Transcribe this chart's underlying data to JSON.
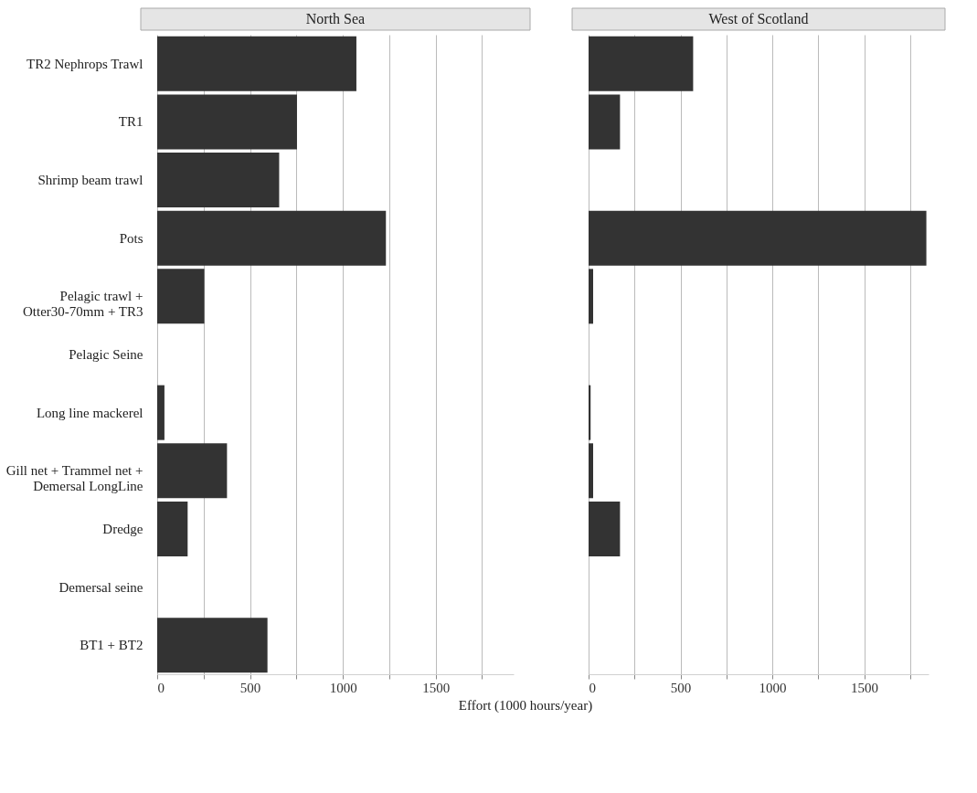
{
  "chart_data": [
    {
      "type": "bar",
      "orientation": "horizontal",
      "title": "North Sea",
      "xlabel": "Effort (1000 hours/year)",
      "categories": [
        "TR2 Nephrops Trawl",
        "TR1",
        "Shrimp beam trawl",
        "Pots",
        "Pelagic trawl +\nOtter30-70mm + TR3",
        "Pelagic Seine",
        "Long line mackerel",
        "Gill net + Trammel net +\nDemersal LongLine",
        "Dredge",
        "Demersal seine",
        "BT1 + BT2"
      ],
      "series": [
        {
          "color": "#333333",
          "values": [
            1073,
            753,
            657,
            1232,
            254,
            0,
            39,
            376,
            164,
            0,
            594
          ]
        }
      ],
      "xlim": [
        0,
        1920
      ],
      "xticks": [
        0,
        {
          "value": 250,
          "label": null
        },
        500,
        {
          "value": 750,
          "label": null
        },
        1000,
        {
          "value": 1250,
          "label": null
        },
        1500,
        {
          "value": 1750,
          "label": null
        }
      ],
      "grid": "x",
      "legend": false
    },
    {
      "type": "bar",
      "orientation": "horizontal",
      "title": "West of Scotland",
      "categories": [
        "TR2 Nephrops Trawl",
        "TR1",
        "Shrimp beam trawl",
        "Pots",
        "Pelagic trawl +\nOtter30-70mm + TR3",
        "Pelagic Seine",
        "Long line mackerel",
        "Gill net + Trammel net +\nDemersal LongLine",
        "Dredge",
        "Demersal seine",
        "BT1 + BT2"
      ],
      "series": [
        {
          "color": "#333333",
          "values": [
            569,
            171,
            0,
            1838,
            25,
            0,
            11,
            25,
            171,
            0,
            0
          ]
        }
      ],
      "xlim": [
        0,
        1850
      ],
      "xticks": [
        0,
        {
          "value": 250,
          "label": null
        },
        500,
        {
          "value": 750,
          "label": null
        },
        1000,
        {
          "value": 1250,
          "label": null
        },
        1500,
        {
          "value": 1750,
          "label": null
        }
      ],
      "grid": "x",
      "legend": false,
      "tick_labels": "x"
    }
  ]
}
